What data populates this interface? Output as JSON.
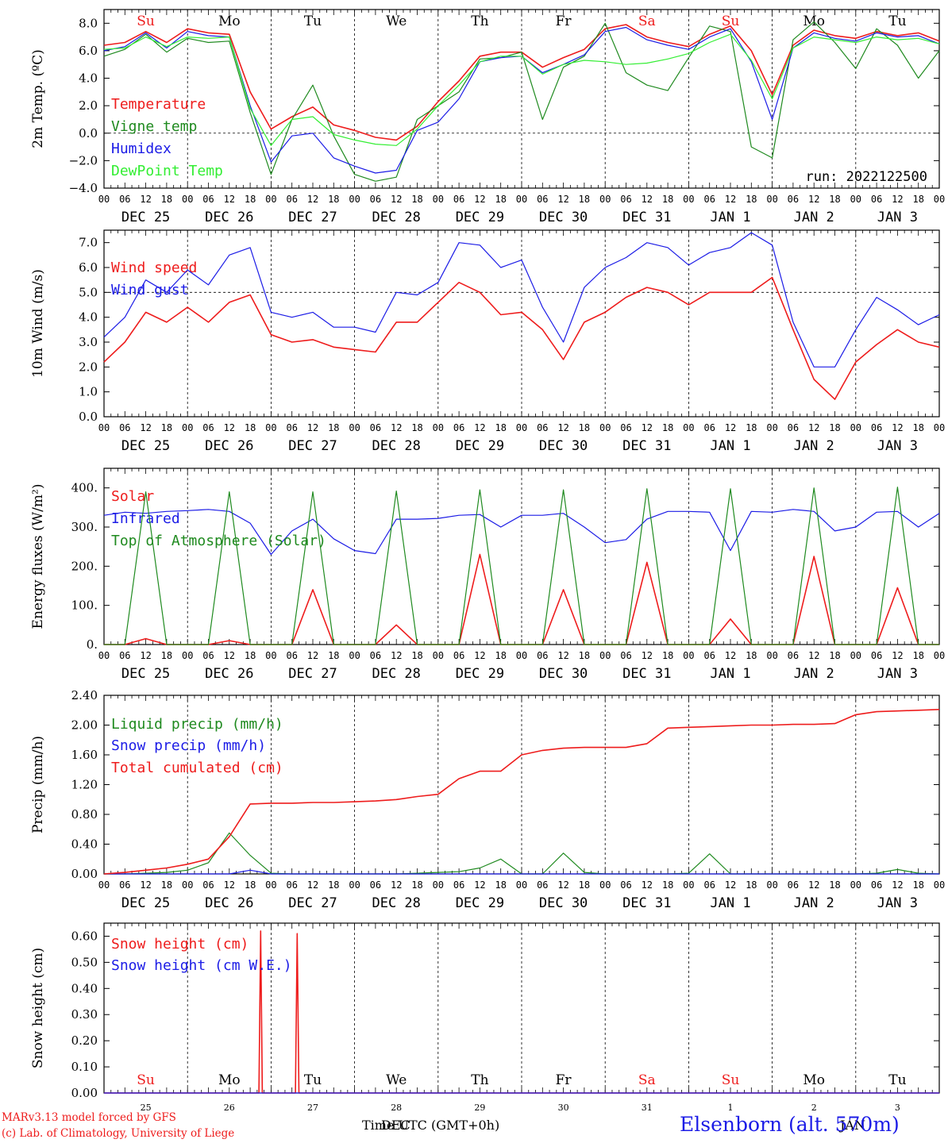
{
  "footer": {
    "model": "MARv3.13 model forced by GFS",
    "lab": "(c) Lab. of Climatology, University of Liege",
    "station": "Elsenborn (alt. 570m)",
    "xlabel": "Time UTC (GMT+0h)",
    "month_top": "DEC",
    "month_bottom": "JAN"
  },
  "colors": {
    "red": "#ee1c1c",
    "green": "#1f8a1f",
    "blue": "#1c1ce6",
    "light_green": "#33ee33",
    "axis": "#000000"
  },
  "days": [
    {
      "abbr": "Su",
      "weekend": true,
      "label": "DEC 25",
      "num": "25"
    },
    {
      "abbr": "Mo",
      "weekend": false,
      "label": "DEC 26",
      "num": "26"
    },
    {
      "abbr": "Tu",
      "weekend": false,
      "label": "DEC 27",
      "num": "27"
    },
    {
      "abbr": "We",
      "weekend": false,
      "label": "DEC 28",
      "num": "28"
    },
    {
      "abbr": "Th",
      "weekend": false,
      "label": "DEC 29",
      "num": "29"
    },
    {
      "abbr": "Fr",
      "weekend": false,
      "label": "DEC 30",
      "num": "30"
    },
    {
      "abbr": "Sa",
      "weekend": true,
      "label": "DEC 31",
      "num": "31"
    },
    {
      "abbr": "Su",
      "weekend": true,
      "label": "JAN  1",
      "num": "1"
    },
    {
      "abbr": "Mo",
      "weekend": false,
      "label": "JAN  2",
      "num": "2"
    },
    {
      "abbr": "Tu",
      "weekend": false,
      "label": "JAN  3",
      "num": "3"
    }
  ],
  "hour_ticks": [
    "00",
    "06",
    "12",
    "18"
  ],
  "hour_end": "00",
  "chart_data": [
    {
      "type": "line",
      "ylabel": "2m Temp. (ºC)",
      "ylim": [
        -4,
        9
      ],
      "yticks": [
        -4,
        -2,
        0,
        2,
        4,
        6,
        8
      ],
      "ytick_labels": [
        "−4.0",
        "−2.0",
        "0.0",
        "2.0",
        "4.0",
        "6.0",
        "8.0"
      ],
      "ref_line": 0,
      "annotation": "run: 2022122500",
      "x": [
        0,
        6,
        12,
        18,
        24,
        30,
        36,
        42,
        48,
        54,
        60,
        66,
        72,
        78,
        84,
        90,
        96,
        102,
        108,
        114,
        120,
        126,
        132,
        138,
        144,
        150,
        156,
        162,
        168,
        174,
        180,
        186,
        192,
        198,
        204,
        210,
        216,
        222,
        228,
        234,
        240
      ],
      "series": [
        {
          "name": "Temperature",
          "color": "red",
          "values": [
            6.4,
            6.6,
            7.4,
            6.6,
            7.6,
            7.3,
            7.2,
            3.0,
            0.3,
            1.2,
            1.9,
            0.6,
            0.2,
            -0.3,
            -0.5,
            0.5,
            2.3,
            3.8,
            5.6,
            5.9,
            5.9,
            4.8,
            5.5,
            6.1,
            7.6,
            7.9,
            7.0,
            6.6,
            6.3,
            7.2,
            7.8,
            6.0,
            2.8,
            6.4,
            7.5,
            7.1,
            6.9,
            7.4,
            7.1,
            7.3,
            6.7
          ]
        },
        {
          "name": "Vigne temp",
          "color": "green",
          "values": [
            5.6,
            6.1,
            7.2,
            5.9,
            6.9,
            6.6,
            6.7,
            1.5,
            -3.0,
            1.0,
            3.5,
            -0.2,
            -3.0,
            -3.5,
            -3.2,
            1.0,
            2.0,
            3.0,
            5.4,
            5.5,
            5.9,
            1.0,
            4.8,
            5.6,
            8.0,
            4.4,
            3.5,
            3.1,
            5.5,
            7.8,
            7.4,
            -1.0,
            -1.8,
            6.8,
            8.1,
            6.6,
            4.7,
            7.6,
            6.4,
            4.0,
            6.0
          ]
        },
        {
          "name": "Humidex",
          "color": "blue",
          "values": [
            6.0,
            6.3,
            7.3,
            6.2,
            7.4,
            7.1,
            7.0,
            2.0,
            -2.1,
            -0.2,
            0.0,
            -1.8,
            -2.4,
            -2.9,
            -2.7,
            0.2,
            0.8,
            2.5,
            5.2,
            5.5,
            5.6,
            4.4,
            5.0,
            5.7,
            7.4,
            7.7,
            6.8,
            6.4,
            6.1,
            7.0,
            7.6,
            5.2,
            1.0,
            6.2,
            7.3,
            6.9,
            6.7,
            7.3,
            7.0,
            7.1,
            6.5
          ]
        },
        {
          "name": "DewPoint Temp",
          "color": "light_green",
          "values": [
            6.1,
            6.2,
            7.0,
            6.3,
            7.0,
            6.9,
            7.0,
            1.8,
            -0.9,
            1.0,
            1.2,
            -0.1,
            -0.5,
            -0.8,
            -0.9,
            0.3,
            2.0,
            3.5,
            5.2,
            5.6,
            5.6,
            4.3,
            5.0,
            5.3,
            5.2,
            5.0,
            5.1,
            5.4,
            5.8,
            6.6,
            7.2,
            5.3,
            2.5,
            6.2,
            7.0,
            6.8,
            6.6,
            7.0,
            6.8,
            6.9,
            6.5
          ]
        }
      ]
    },
    {
      "type": "line",
      "ylabel": "10m Wind (m/s)",
      "ylim": [
        0,
        7.5
      ],
      "yticks": [
        0,
        1,
        2,
        3,
        4,
        5,
        6,
        7
      ],
      "ytick_labels": [
        "0.0",
        "1.0",
        "2.0",
        "3.0",
        "4.0",
        "5.0",
        "6.0",
        "7.0"
      ],
      "ref_line": 5,
      "x": [
        0,
        6,
        12,
        18,
        24,
        30,
        36,
        42,
        48,
        54,
        60,
        66,
        72,
        78,
        84,
        90,
        96,
        102,
        108,
        114,
        120,
        126,
        132,
        138,
        144,
        150,
        156,
        162,
        168,
        174,
        180,
        186,
        192,
        198,
        204,
        210,
        216,
        222,
        228,
        234,
        240
      ],
      "series": [
        {
          "name": "Wind speed",
          "color": "red",
          "values": [
            2.2,
            3.0,
            4.2,
            3.8,
            4.4,
            3.8,
            4.6,
            4.9,
            3.3,
            3.0,
            3.1,
            2.8,
            2.7,
            2.6,
            3.8,
            3.8,
            4.6,
            5.4,
            5.0,
            4.1,
            4.2,
            3.5,
            2.3,
            3.8,
            4.2,
            4.8,
            5.2,
            5.0,
            4.5,
            5.0,
            5.0,
            5.0,
            5.6,
            3.5,
            1.5,
            0.7,
            2.2,
            2.9,
            3.5,
            3.0,
            2.8
          ]
        },
        {
          "name": "Wind gust",
          "color": "blue",
          "values": [
            3.2,
            4.0,
            5.5,
            5.0,
            5.9,
            5.3,
            6.5,
            6.8,
            4.2,
            4.0,
            4.2,
            3.6,
            3.6,
            3.4,
            5.0,
            4.9,
            5.4,
            7.0,
            6.9,
            6.0,
            6.3,
            4.4,
            3.0,
            5.2,
            6.0,
            6.4,
            7.0,
            6.8,
            6.1,
            6.6,
            6.8,
            7.4,
            6.9,
            3.8,
            2.0,
            2.0,
            3.5,
            4.8,
            4.3,
            3.7,
            4.1
          ]
        }
      ]
    },
    {
      "type": "line",
      "ylabel": "Energy fluxes (W/m²)",
      "ylim": [
        0,
        450
      ],
      "yticks": [
        0,
        100,
        200,
        300,
        400
      ],
      "ytick_labels": [
        "0.",
        "100.",
        "200.",
        "300.",
        "400."
      ],
      "x": [
        0,
        6,
        12,
        18,
        24,
        30,
        36,
        42,
        48,
        54,
        60,
        66,
        72,
        78,
        84,
        90,
        96,
        102,
        108,
        114,
        120,
        126,
        132,
        138,
        144,
        150,
        156,
        162,
        168,
        174,
        180,
        186,
        192,
        198,
        204,
        210,
        216,
        222,
        228,
        234,
        240
      ],
      "series": [
        {
          "name": "Solar",
          "color": "red",
          "values": [
            0,
            0,
            15,
            0,
            0,
            0,
            10,
            0,
            0,
            0,
            140,
            0,
            0,
            0,
            50,
            0,
            0,
            0,
            230,
            0,
            0,
            0,
            140,
            0,
            0,
            0,
            210,
            0,
            0,
            0,
            65,
            0,
            0,
            0,
            225,
            0,
            0,
            0,
            145,
            0,
            0
          ]
        },
        {
          "name": "Infrared",
          "color": "blue",
          "values": [
            330,
            338,
            335,
            340,
            342,
            345,
            340,
            310,
            230,
            290,
            320,
            270,
            240,
            232,
            320,
            320,
            322,
            330,
            332,
            300,
            330,
            330,
            335,
            300,
            260,
            268,
            320,
            340,
            340,
            338,
            240,
            340,
            338,
            345,
            340,
            290,
            300,
            338,
            340,
            300,
            335
          ]
        },
        {
          "name": "Top of Atmosphere (Solar)",
          "color": "green",
          "values": [
            0,
            0,
            390,
            0,
            0,
            0,
            390,
            0,
            0,
            0,
            390,
            0,
            0,
            0,
            392,
            0,
            0,
            0,
            395,
            0,
            0,
            0,
            395,
            0,
            0,
            0,
            398,
            0,
            0,
            0,
            398,
            0,
            0,
            0,
            400,
            0,
            0,
            0,
            402,
            0,
            0
          ]
        }
      ]
    },
    {
      "type": "line",
      "ylabel": "Precip (mm/h)",
      "ylim": [
        0,
        2.4
      ],
      "yticks": [
        0,
        0.4,
        0.8,
        1.2,
        1.6,
        2.0,
        2.4
      ],
      "ytick_labels": [
        "0.00",
        "0.40",
        "0.80",
        "1.20",
        "1.60",
        "2.00",
        "2.40"
      ],
      "x": [
        0,
        6,
        12,
        18,
        24,
        30,
        36,
        42,
        48,
        54,
        60,
        66,
        72,
        78,
        84,
        90,
        96,
        102,
        108,
        114,
        120,
        126,
        132,
        138,
        144,
        150,
        156,
        162,
        168,
        174,
        180,
        186,
        192,
        198,
        204,
        210,
        216,
        222,
        228,
        234,
        240
      ],
      "series": [
        {
          "name": "Liquid precip (mm/h)",
          "color": "green",
          "values": [
            0,
            0,
            0.01,
            0.02,
            0.05,
            0.15,
            0.55,
            0.25,
            0.01,
            0,
            0,
            0,
            0,
            0,
            0,
            0.01,
            0.02,
            0.03,
            0.08,
            0.2,
            0,
            0,
            0.28,
            0.02,
            0,
            0,
            0,
            0,
            0.01,
            0.27,
            0,
            0,
            0,
            0,
            0,
            0,
            0,
            0.01,
            0.06,
            0.01,
            0
          ]
        },
        {
          "name": "Snow precip (mm/h)",
          "color": "blue",
          "values": [
            0,
            0,
            0,
            0,
            0,
            0,
            0,
            0.05,
            0,
            0,
            0,
            0,
            0,
            0,
            0,
            0,
            0,
            0,
            0,
            0,
            0,
            0,
            0,
            0,
            0,
            0,
            0,
            0,
            0,
            0,
            0,
            0,
            0,
            0,
            0,
            0,
            0,
            0,
            0,
            0,
            0
          ]
        },
        {
          "name": "Total cumulated (cm)",
          "color": "red",
          "values": [
            0,
            0.02,
            0.05,
            0.08,
            0.13,
            0.2,
            0.5,
            0.94,
            0.95,
            0.95,
            0.96,
            0.96,
            0.97,
            0.98,
            1.0,
            1.04,
            1.07,
            1.28,
            1.38,
            1.38,
            1.6,
            1.66,
            1.69,
            1.7,
            1.7,
            1.7,
            1.75,
            1.96,
            1.97,
            1.98,
            1.99,
            2.0,
            2.0,
            2.01,
            2.01,
            2.02,
            2.14,
            2.18,
            2.19,
            2.2,
            2.21
          ]
        }
      ]
    },
    {
      "type": "line",
      "ylabel": "Snow height (cm)",
      "ylim": [
        0,
        0.65
      ],
      "yticks": [
        0,
        0.1,
        0.2,
        0.3,
        0.4,
        0.5,
        0.6
      ],
      "ytick_labels": [
        "0.00",
        "0.10",
        "0.20",
        "0.30",
        "0.40",
        "0.50",
        "0.60"
      ],
      "x": [
        0,
        44.5,
        45,
        45.5,
        55,
        55.5,
        56,
        240
      ],
      "series": [
        {
          "name": "Snow height (cm)",
          "color": "red",
          "values": [
            0,
            0,
            0.62,
            0,
            0,
            0.61,
            0,
            0
          ]
        },
        {
          "name": "Snow height (cm W.E.)",
          "color": "blue",
          "values": [
            0,
            0,
            0,
            0,
            0,
            0,
            0,
            0
          ]
        }
      ]
    }
  ]
}
